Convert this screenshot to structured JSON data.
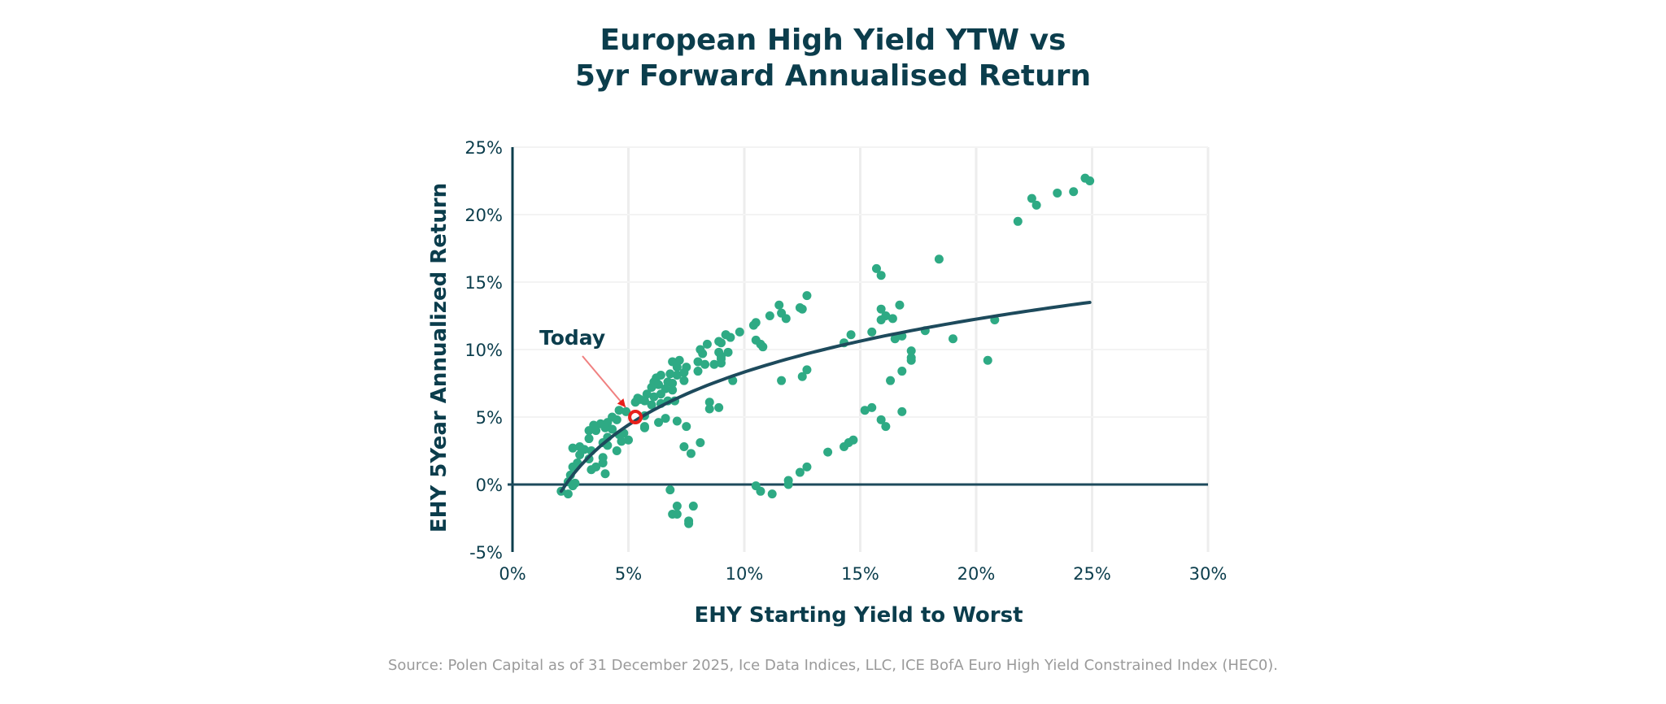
{
  "chart_data": {
    "type": "scatter",
    "title_lines": [
      "European High Yield YTW vs",
      "5yr Forward Annualised Return"
    ],
    "xlabel": "EHY Starting Yield to Worst",
    "ylabel": "EHY 5Year Annualized Return",
    "xlim": [
      0,
      30
    ],
    "ylim": [
      -5,
      25
    ],
    "xticks": [
      0,
      5,
      10,
      15,
      20,
      25,
      30
    ],
    "yticks": [
      -5,
      0,
      5,
      10,
      15,
      20,
      25
    ],
    "xtick_labels": [
      "0%",
      "5%",
      "10%",
      "15%",
      "20%",
      "25%",
      "30%"
    ],
    "ytick_labels": [
      "-5%",
      "0%",
      "5%",
      "10%",
      "15%",
      "20%",
      "25%"
    ],
    "grid": true,
    "colors": {
      "points": "#2eaa84",
      "trend": "#1d4a5c",
      "today": "#e8201c",
      "arrow": "#f08080",
      "text": "#0b3d4c"
    },
    "trendline": {
      "type": "logarithmic",
      "a": 5.66,
      "b": -4.7,
      "x_range": [
        2.1,
        24.9
      ]
    },
    "annotation": {
      "label": "Today",
      "x": 5.3,
      "y": 5.0
    },
    "points": [
      [
        15.7,
        16.0
      ],
      [
        15.9,
        15.5
      ],
      [
        18.4,
        16.7
      ],
      [
        21.8,
        19.5
      ],
      [
        22.4,
        21.2
      ],
      [
        22.6,
        20.7
      ],
      [
        23.5,
        21.6
      ],
      [
        24.2,
        21.7
      ],
      [
        24.7,
        22.7
      ],
      [
        24.9,
        22.5
      ],
      [
        15.9,
        13.0
      ],
      [
        16.7,
        13.3
      ],
      [
        15.9,
        12.2
      ],
      [
        16.1,
        12.5
      ],
      [
        16.4,
        12.3
      ],
      [
        20.8,
        12.2
      ],
      [
        14.3,
        10.5
      ],
      [
        14.6,
        11.1
      ],
      [
        15.5,
        11.3
      ],
      [
        16.5,
        10.8
      ],
      [
        16.8,
        11.0
      ],
      [
        17.8,
        11.4
      ],
      [
        19.0,
        10.8
      ],
      [
        20.5,
        9.2
      ],
      [
        17.2,
        9.9
      ],
      [
        17.2,
        9.4
      ],
      [
        17.2,
        9.2
      ],
      [
        16.8,
        8.4
      ],
      [
        16.3,
        7.7
      ],
      [
        15.2,
        5.5
      ],
      [
        15.5,
        5.7
      ],
      [
        16.8,
        5.4
      ],
      [
        15.9,
        4.8
      ],
      [
        16.1,
        4.3
      ],
      [
        14.7,
        3.3
      ],
      [
        14.5,
        3.1
      ],
      [
        14.3,
        2.8
      ],
      [
        13.6,
        2.4
      ],
      [
        12.7,
        14.0
      ],
      [
        11.5,
        13.3
      ],
      [
        12.4,
        13.1
      ],
      [
        12.5,
        13.0
      ],
      [
        11.6,
        12.7
      ],
      [
        11.8,
        12.3
      ],
      [
        11.1,
        12.5
      ],
      [
        10.5,
        12.0
      ],
      [
        10.4,
        11.8
      ],
      [
        9.8,
        11.3
      ],
      [
        9.2,
        11.1
      ],
      [
        9.4,
        10.9
      ],
      [
        10.5,
        10.7
      ],
      [
        10.7,
        10.4
      ],
      [
        10.8,
        10.2
      ],
      [
        8.9,
        10.6
      ],
      [
        9.3,
        9.8
      ],
      [
        9.0,
        9.5
      ],
      [
        9.0,
        9.0
      ],
      [
        9.5,
        7.7
      ],
      [
        11.6,
        7.7
      ],
      [
        12.5,
        8.0
      ],
      [
        12.7,
        8.5
      ],
      [
        8.5,
        6.1
      ],
      [
        8.5,
        5.6
      ],
      [
        8.9,
        5.7
      ],
      [
        7.1,
        4.7
      ],
      [
        7.5,
        4.3
      ],
      [
        5.7,
        4.2
      ],
      [
        6.3,
        4.6
      ],
      [
        6.6,
        4.9
      ],
      [
        8.1,
        3.1
      ],
      [
        7.4,
        2.8
      ],
      [
        7.7,
        2.3
      ],
      [
        6.8,
        -0.4
      ],
      [
        7.1,
        -1.6
      ],
      [
        7.8,
        -1.6
      ],
      [
        6.9,
        -2.2
      ],
      [
        7.1,
        -2.2
      ],
      [
        7.6,
        -2.7
      ],
      [
        7.6,
        -2.9
      ],
      [
        10.5,
        -0.1
      ],
      [
        10.7,
        -0.5
      ],
      [
        11.2,
        -0.7
      ],
      [
        11.9,
        0.3
      ],
      [
        11.9,
        0.0
      ],
      [
        12.4,
        0.9
      ],
      [
        12.7,
        1.3
      ],
      [
        5.3,
        6.1
      ],
      [
        5.5,
        6.3
      ],
      [
        4.6,
        5.5
      ],
      [
        4.9,
        5.4
      ],
      [
        4.3,
        5.0
      ],
      [
        4.5,
        4.8
      ],
      [
        4.1,
        4.6
      ],
      [
        3.8,
        4.5
      ],
      [
        3.5,
        4.4
      ],
      [
        3.3,
        4.0
      ],
      [
        3.6,
        4.0
      ],
      [
        4.0,
        4.2
      ],
      [
        4.3,
        4.1
      ],
      [
        4.6,
        3.7
      ],
      [
        4.8,
        3.8
      ],
      [
        5.0,
        3.3
      ],
      [
        4.7,
        3.2
      ],
      [
        4.1,
        3.5
      ],
      [
        3.9,
        3.1
      ],
      [
        3.3,
        3.4
      ],
      [
        2.6,
        2.7
      ],
      [
        2.9,
        2.8
      ],
      [
        3.1,
        2.6
      ],
      [
        3.4,
        2.5
      ],
      [
        4.1,
        2.9
      ],
      [
        4.5,
        2.5
      ],
      [
        2.9,
        2.2
      ],
      [
        3.3,
        1.9
      ],
      [
        3.9,
        2.0
      ],
      [
        3.9,
        1.6
      ],
      [
        3.4,
        1.1
      ],
      [
        3.6,
        1.3
      ],
      [
        2.8,
        1.6
      ],
      [
        2.6,
        1.3
      ],
      [
        2.5,
        0.7
      ],
      [
        4.0,
        0.8
      ],
      [
        2.4,
        0.2
      ],
      [
        2.6,
        -0.1
      ],
      [
        2.1,
        -0.5
      ],
      [
        2.4,
        -0.7
      ],
      [
        2.7,
        0.1
      ],
      [
        5.7,
        4.3
      ],
      [
        5.7,
        5.1
      ],
      [
        9.2,
        11.1
      ],
      [
        9.0,
        10.5
      ],
      [
        8.4,
        10.4
      ],
      [
        8.1,
        10.0
      ],
      [
        8.2,
        9.7
      ],
      [
        8.9,
        9.8
      ],
      [
        9.0,
        9.3
      ],
      [
        8.7,
        8.9
      ],
      [
        8.3,
        8.9
      ],
      [
        8.0,
        9.1
      ],
      [
        8.0,
        8.4
      ],
      [
        7.5,
        8.7
      ],
      [
        7.2,
        9.2
      ],
      [
        6.9,
        9.1
      ],
      [
        7.1,
        8.7
      ],
      [
        7.4,
        8.3
      ],
      [
        7.4,
        7.7
      ],
      [
        7.1,
        8.1
      ],
      [
        6.8,
        8.2
      ],
      [
        6.4,
        8.1
      ],
      [
        6.2,
        7.9
      ],
      [
        6.1,
        7.6
      ],
      [
        6.3,
        7.4
      ],
      [
        6.7,
        7.6
      ],
      [
        6.9,
        7.5
      ],
      [
        6.0,
        7.2
      ],
      [
        6.6,
        7.1
      ],
      [
        6.9,
        7.0
      ],
      [
        6.4,
        6.7
      ],
      [
        6.1,
        6.5
      ],
      [
        5.8,
        6.7
      ],
      [
        5.7,
        6.2
      ],
      [
        6.7,
        6.2
      ],
      [
        7.0,
        6.2
      ],
      [
        5.4,
        6.4
      ],
      [
        6.0,
        5.9
      ],
      [
        6.4,
        6.0
      ]
    ]
  },
  "source": "Source: Polen Capital as of 31 December 2025, Ice Data Indices, LLC, ICE BofA Euro High Yield Constrained Index (HEC0)."
}
